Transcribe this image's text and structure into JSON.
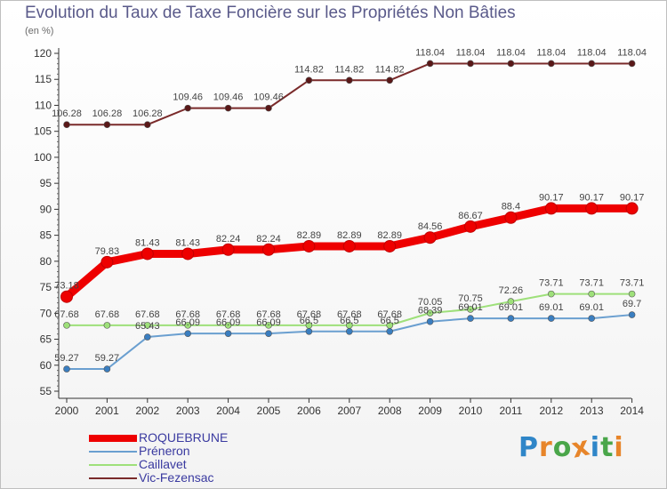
{
  "title": "Evolution du Taux de Taxe Foncière sur les Propriétés Non Bâties",
  "unit_label": "(en %)",
  "logo_text": "Proxiti",
  "logo_colors": [
    "#2f86c8",
    "#e7852a",
    "#4aa64a",
    "#e7852a",
    "#2f86c8",
    "#4aa64a",
    "#e7852a"
  ],
  "chart_data": {
    "type": "line",
    "title": "Evolution du Taux de Taxe Foncière sur les Propriétés Non Bâties",
    "ylabel": "(en %)",
    "xlabel": "",
    "categories": [
      "2000",
      "2001",
      "2002",
      "2003",
      "2004",
      "2005",
      "2006",
      "2007",
      "2008",
      "2009",
      "2010",
      "2011",
      "2012",
      "2013",
      "2014"
    ],
    "ylim": [
      55,
      120
    ],
    "yticks": [
      55,
      60,
      65,
      70,
      75,
      80,
      85,
      90,
      95,
      100,
      105,
      110,
      115,
      120
    ],
    "grid": false,
    "legend_position": "bottom-left",
    "series": [
      {
        "name": "ROQUEBRUNE",
        "color": "#ee0000",
        "emphasis": true,
        "values": [
          73.18,
          79.83,
          81.43,
          81.43,
          82.24,
          82.24,
          82.89,
          82.89,
          82.89,
          84.56,
          86.67,
          88.4,
          90.17,
          90.17,
          90.17
        ],
        "labels": [
          "73.18",
          "79.83",
          "81.43",
          "81.43",
          "82.24",
          "82.24",
          "82.89",
          "82.89",
          "82.89",
          "84.56",
          "86.67",
          "88.4",
          "90.17",
          "90.17",
          "90.17"
        ]
      },
      {
        "name": "Préneron",
        "color": "#6a9fd0",
        "emphasis": false,
        "values": [
          59.27,
          59.27,
          65.43,
          66.09,
          66.09,
          66.09,
          66.5,
          66.5,
          66.5,
          68.39,
          69.01,
          69.01,
          69.01,
          69.01,
          69.7
        ],
        "labels": [
          "59.27",
          "59.27",
          "65.43",
          "66.09",
          "66.09",
          "66.09",
          "66.5",
          "66.5",
          "66.5",
          "68.39",
          "69.01",
          "69.01",
          "69.01",
          "69.01",
          "69.7"
        ]
      },
      {
        "name": "Caillavet",
        "color": "#9ee07a",
        "emphasis": false,
        "values": [
          67.68,
          67.68,
          67.68,
          67.68,
          67.68,
          67.68,
          67.68,
          67.68,
          67.68,
          70.05,
          70.75,
          72.26,
          73.71,
          73.71,
          73.71
        ],
        "labels": [
          "67.68",
          "67.68",
          "67.68",
          "67.68",
          "67.68",
          "67.68",
          "67.68",
          "67.68",
          "67.68",
          "70.05",
          "70.75",
          "72.26",
          "73.71",
          "73.71",
          "73.71"
        ]
      },
      {
        "name": "Vic-Fezensac",
        "color": "#7a2a2a",
        "emphasis": false,
        "values": [
          106.28,
          106.28,
          106.28,
          109.46,
          109.46,
          109.46,
          114.82,
          114.82,
          114.82,
          118.04,
          118.04,
          118.04,
          118.04,
          118.04,
          118.04
        ],
        "labels": [
          "106.28",
          "106.28",
          "106.28",
          "109.46",
          "109.46",
          "109.46",
          "114.82",
          "114.82",
          "114.82",
          "118.04",
          "118.04",
          "118.04",
          "118.04",
          "118.04",
          "118.04"
        ]
      }
    ]
  }
}
